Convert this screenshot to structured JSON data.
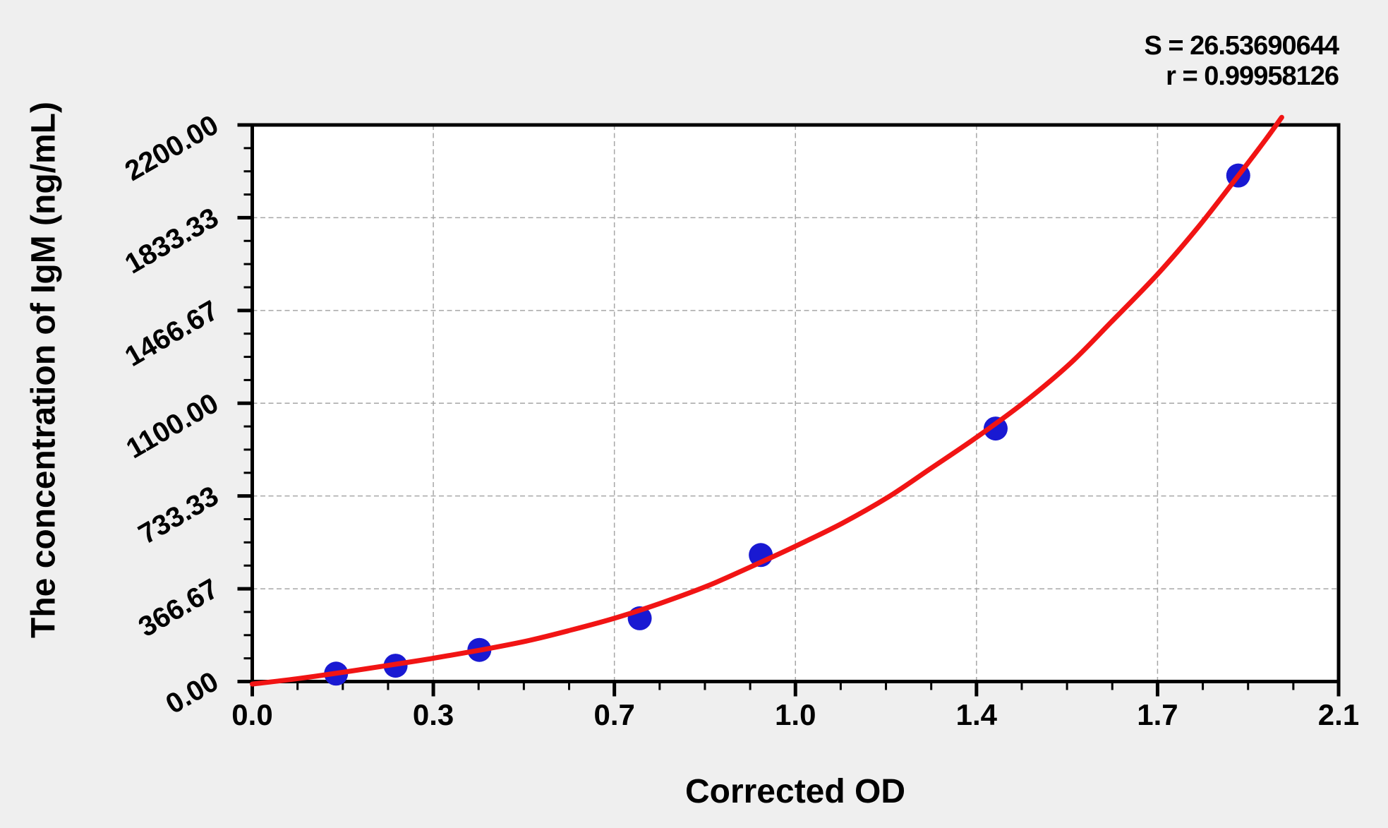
{
  "figure": {
    "background_color": "#efefef",
    "stats": {
      "s_label": "S = 26.53690644",
      "r_label": "r = 0.99958126"
    }
  },
  "chart_data": {
    "type": "scatter",
    "title": "",
    "xlabel": "Corrected OD",
    "ylabel": "The concentration of IgM (ng/mL)",
    "xlim": [
      0,
      2.1
    ],
    "ylim": [
      0,
      2200
    ],
    "grid": "dashed gridlines at major ticks, both axes",
    "legend_position": "none",
    "plot_background": "#ffffff",
    "grid_color": "#a6a6a6",
    "axis_color": "#000000",
    "x_axis": {
      "tick_values": [
        0,
        0.35,
        0.7,
        1.05,
        1.4,
        1.75,
        2.1
      ],
      "tick_labels": [
        "0.0",
        "0.3",
        "0.7",
        "1.0",
        "1.4",
        "1.7",
        "2.1"
      ],
      "minor_divisions_per_major": 4
    },
    "y_axis": {
      "tick_values": [
        0,
        366.67,
        733.33,
        1100,
        1466.67,
        1833.33,
        2200
      ],
      "tick_labels": [
        "0.00",
        "366.67",
        "733.33",
        "1100.00",
        "1466.67",
        "1833.33",
        "2200.00"
      ],
      "minor_divisions_per_major": 4
    },
    "series": [
      {
        "name": "standard-points",
        "type": "scatter",
        "color": "#1919d2",
        "marker_radius_px": 17,
        "points": [
          {
            "od": 0.162,
            "conc": 31.25
          },
          {
            "od": 0.277,
            "conc": 62.5
          },
          {
            "od": 0.439,
            "conc": 125
          },
          {
            "od": 0.749,
            "conc": 250
          },
          {
            "od": 0.983,
            "conc": 500
          },
          {
            "od": 1.437,
            "conc": 1000
          },
          {
            "od": 1.906,
            "conc": 2000
          }
        ]
      },
      {
        "name": "fitted-curve",
        "type": "line",
        "color": "#f11414",
        "stroke_width_px": 7,
        "samples": [
          [
            0,
            -10
          ],
          [
            0.09,
            12
          ],
          [
            0.18,
            38
          ],
          [
            0.26,
            63
          ],
          [
            0.35,
            92
          ],
          [
            0.44,
            124
          ],
          [
            0.53,
            160
          ],
          [
            0.61,
            200
          ],
          [
            0.7,
            250
          ],
          [
            0.79,
            310
          ],
          [
            0.88,
            378
          ],
          [
            0.96,
            450
          ],
          [
            1.05,
            535
          ],
          [
            1.14,
            625
          ],
          [
            1.23,
            730
          ],
          [
            1.31,
            840
          ],
          [
            1.4,
            965
          ],
          [
            1.49,
            1100
          ],
          [
            1.58,
            1255
          ],
          [
            1.66,
            1420
          ],
          [
            1.75,
            1610
          ],
          [
            1.83,
            1800
          ],
          [
            1.91,
            2010
          ],
          [
            1.96,
            2145
          ],
          [
            1.99,
            2230
          ]
        ]
      }
    ],
    "fit_stats": {
      "S": 26.53690644,
      "r": 0.99958126
    }
  }
}
